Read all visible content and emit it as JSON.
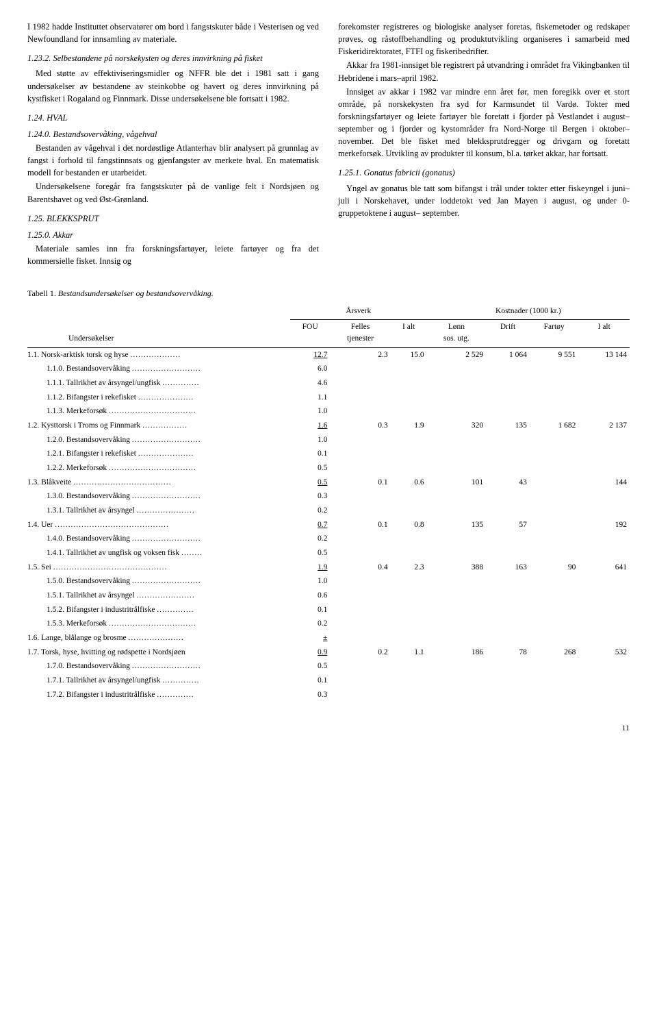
{
  "left": {
    "p1": "I 1982 hadde Instituttet observatører om bord i fangstskuter både i Vesterisen og ved Newfoundland for innsamling av materiale.",
    "h1": "1.23.2. Selbestandene på norskekysten og deres innvirkning på fisket",
    "p2": "Med støtte av effektiviseringsmidler og NFFR ble det i 1981 satt i gang undersøkelser av bestandene av steinkobbe og havert og deres innvirkning på kystfisket i Rogaland og Finnmark. Disse undersøkelsene ble fortsatt i 1982.",
    "h2": "1.24. HVAL",
    "h3": "1.24.0. Bestandsovervåking, vågehval",
    "p3": "Bestanden av vågehval i det nordøstlige Atlanterhav blir analysert på grunnlag av fangst i forhold til fangstinnsats og gjenfangster av merkete hval. En matematisk modell for bestanden er utarbeidet.",
    "p4": "Undersøkelsene foregår fra fangstskuter på de vanlige felt i Nordsjøen og Barentshavet og ved Øst-Grønland.",
    "h4": "1.25. BLEKKSPRUT",
    "h5": "1.25.0. Akkar",
    "p5": "Materiale samles inn fra forskningsfartøyer, leiete fartøyer og fra det kommersielle fisket. Innsig og"
  },
  "right": {
    "p1": "forekomster registreres og biologiske analyser foretas, fiskemetoder og redskaper prøves, og råstoffbehandling og produktutvikling organiseres i samarbeid med Fiskeridirektoratet, FTFI og fiskeribedrifter.",
    "p2": "Akkar fra 1981-innsiget ble registrert på utvandring i området fra Vikingbanken til Hebridene i mars–april 1982.",
    "p3": "Innsiget av akkar i 1982 var mindre enn året før, men foregikk over et stort område, på norskekysten fra syd for Karmsundet til Vardø. Tokter med forskningsfartøyer og leiete fartøyer ble foretatt i fjorder på Vestlandet i august–september og i fjorder og kystområder fra Nord-Norge til Bergen i oktober–november. Det ble fisket med blekksprutdregger og drivgarn og foretatt merkeforsøk. Utvikling av produkter til konsum, bl.a. tørket akkar, har fortsatt.",
    "h1": "1.25.1. Gonatus fabricii (gonatus)",
    "p4": "Yngel av gonatus ble tatt som bifangst i trål under tokter etter fiskeyngel i juni–juli i Norskehavet, under loddetokt ved Jan Mayen i august, og under 0-gruppetoktene i august– september."
  },
  "table": {
    "caption_prefix": "Tabell 1. ",
    "caption_italic": "Bestandsundersøkelser og bestandsovervåking.",
    "group1": "Årsverk",
    "group2": "Kostnader (1000 kr.)",
    "col_under": "Undersøkelser",
    "col_fou": "FOU",
    "col_felles": "Felles\ntjenester",
    "col_ialt": "I alt",
    "col_lonn": "Lønn\nsos. utg.",
    "col_drift": "Drift",
    "col_fartoy": "Fartøy",
    "col_ialt2": "I alt",
    "rows": [
      {
        "main": true,
        "id": "1.1.",
        "name": "Norsk-arktisk torsk og hyse",
        "fou": "12.7",
        "fou_u": true,
        "fel": "2.3",
        "ialt": "15.0",
        "lonn": "2 529",
        "drift": "1 064",
        "fart": "9 551",
        "tot": "13 144"
      },
      {
        "id": "1.1.0.",
        "name": "Bestandsovervåking",
        "fou": "6.0"
      },
      {
        "id": "1.1.1.",
        "name": "Tallrikhet av årsyngel/ungfisk",
        "fou": "4.6"
      },
      {
        "id": "1.1.2.",
        "name": "Bifangster i rekefisket",
        "fou": "1.1"
      },
      {
        "id": "1.1.3.",
        "name": "Merkeforsøk",
        "fou": "1.0"
      },
      {
        "main": true,
        "id": "1.2.",
        "name": "Kysttorsk i Troms og Finnmark",
        "fou": "1.6",
        "fou_u": true,
        "fel": "0.3",
        "ialt": "1.9",
        "lonn": "320",
        "drift": "135",
        "fart": "1 682",
        "tot": "2 137"
      },
      {
        "id": "1.2.0.",
        "name": "Bestandsovervåking",
        "fou": "1.0"
      },
      {
        "id": "1.2.1.",
        "name": "Bifangster i rekefisket",
        "fou": "0.1"
      },
      {
        "id": "1.2.2.",
        "name": "Merkeforsøk",
        "fou": "0.5"
      },
      {
        "main": true,
        "id": "1.3.",
        "name": "Blåkveite",
        "fou": "0.5",
        "fou_u": true,
        "fel": "0.1",
        "ialt": "0.6",
        "lonn": "101",
        "drift": "43",
        "fart": "",
        "tot": "144"
      },
      {
        "id": "1.3.0.",
        "name": "Bestandsovervåking",
        "fou": "0.3"
      },
      {
        "id": "1.3.1.",
        "name": "Tallrikhet av årsyngel",
        "fou": "0.2"
      },
      {
        "main": true,
        "id": "1.4.",
        "name": "Uer",
        "fou": "0.7",
        "fou_u": true,
        "fel": "0.1",
        "ialt": "0.8",
        "lonn": "135",
        "drift": "57",
        "fart": "",
        "tot": "192"
      },
      {
        "id": "1.4.0.",
        "name": "Bestandsovervåking",
        "fou": "0.2"
      },
      {
        "id": "1.4.1.",
        "name": "Tallrikhet av ungfisk og voksen fisk",
        "fou": "0.5"
      },
      {
        "main": true,
        "id": "1.5.",
        "name": "Sei",
        "fou": "1.9",
        "fou_u": true,
        "fel": "0.4",
        "ialt": "2.3",
        "lonn": "388",
        "drift": "163",
        "fart": "90",
        "tot": "641"
      },
      {
        "id": "1.5.0.",
        "name": "Bestandsovervåking",
        "fou": "1.0"
      },
      {
        "id": "1.5.1.",
        "name": "Tallrikhet av årsyngel",
        "fou": "0.6"
      },
      {
        "id": "1.5.2.",
        "name": "Bifangster i industritrålfiske",
        "fou": "0.1"
      },
      {
        "id": "1.5.3.",
        "name": "Merkeforsøk",
        "fou": "0.2"
      },
      {
        "main": true,
        "id": "1.6.",
        "name": "Lange, blålange og brosme",
        "fou": "±",
        "fou_u": true
      },
      {
        "main": true,
        "id": "1.7.",
        "name": "Torsk, hyse, hvitting og rødspette i Nordsjøen",
        "fou": "0.9",
        "fou_u": true,
        "fel": "0.2",
        "ialt": "1.1",
        "lonn": "186",
        "drift": "78",
        "fart": "268",
        "tot": "532"
      },
      {
        "id": "1.7.0.",
        "name": "Bestandsovervåking",
        "fou": "0.5"
      },
      {
        "id": "1.7.1.",
        "name": "Tallrikhet av årsyngel/ungfisk",
        "fou": "0.1"
      },
      {
        "id": "1.7.2.",
        "name": "Bifangster i industritrålfiske",
        "fou": "0.3"
      }
    ]
  },
  "page_number": "11"
}
